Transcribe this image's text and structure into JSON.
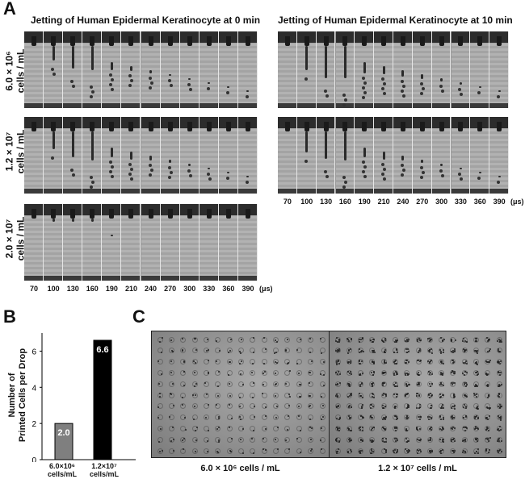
{
  "panel_a": {
    "letter": "A",
    "title_left": "Jetting of Human  Epidermal  Keratinocyte at 0 min",
    "title_right": "Jetting of Human  Epidermal  Keratinocyte at 10 min",
    "row_labels": [
      {
        "line1": "6.0 × 10⁶",
        "line2": "cells / mL"
      },
      {
        "line1": "1.2 × 10⁷",
        "line2": "cells / mL"
      },
      {
        "line1": "2.0 × 10⁷",
        "line2": "cells / mL"
      }
    ],
    "time_ticks": [
      "70",
      "100",
      "130",
      "160",
      "190",
      "210",
      "240",
      "270",
      "300",
      "330",
      "360",
      "390"
    ],
    "time_unit": "(μs)"
  },
  "panel_b": {
    "letter": "B",
    "ylabel_line1": "Number of",
    "ylabel_line2": "Printed Cells per Drop",
    "yticks": [
      "0",
      "2",
      "4",
      "6"
    ],
    "cat1_line1": "6.0×10⁶",
    "cat1_line2": "cells/mL",
    "cat2_line1": "1.2×10⁷",
    "cat2_line2": "cells/mL",
    "bar1_label": "2.0",
    "bar2_label": "6.6",
    "colors": {
      "bar1": "#7f7f7f",
      "bar2": "#000000"
    }
  },
  "chart_data": {
    "type": "bar",
    "categories": [
      "6.0×10⁶ cells/mL",
      "1.2×10⁷ cells/mL"
    ],
    "values": [
      2.0,
      6.6
    ],
    "title": "",
    "xlabel": "",
    "ylabel": "Number of Printed Cells per Drop",
    "ylim": [
      0,
      7
    ],
    "grid": false
  },
  "panel_c": {
    "letter": "C",
    "caption_left": "6.0 × 10⁶ cells / mL",
    "caption_right": "1.2 × 10⁷ cells / mL"
  }
}
